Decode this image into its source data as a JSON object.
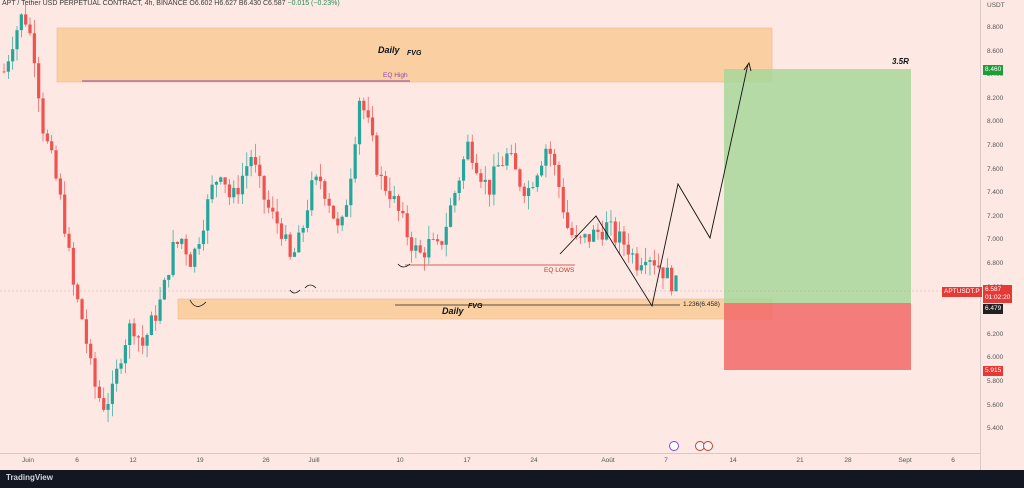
{
  "header": {
    "symbol": "APT / Tether USD PERPETUAL CONTRACT, 4h, BINANCE",
    "open": "O6.602",
    "high": "H6.627",
    "low": "B6.430",
    "close": "C6.587",
    "change": "−0.015 (−0.23%)"
  },
  "currency": "USDT",
  "chart_data": {
    "type": "candlestick",
    "symbol": "APTUSDT.P",
    "timeframe": "4h",
    "ylim": [
      5.2,
      9.0
    ],
    "x_ticks": [
      "Juin",
      "6",
      "12",
      "19",
      "26",
      "Juill",
      "10",
      "17",
      "24",
      "Août",
      "7",
      "14",
      "21",
      "28",
      "Sept",
      "6"
    ],
    "y_ticks": [
      "8.800",
      "8.600",
      "8.400",
      "8.200",
      "8.000",
      "7.800",
      "7.600",
      "7.400",
      "7.200",
      "7.000",
      "6.800",
      "6.600",
      "6.400",
      "6.200",
      "6.000",
      "5.800",
      "5.600",
      "5.400"
    ],
    "price_path": [
      8.4,
      8.7,
      8.9,
      8.6,
      7.9,
      7.6,
      7.2,
      6.6,
      6.3,
      5.8,
      5.6,
      5.7,
      6.1,
      6.3,
      6.1,
      6.3,
      6.5,
      6.9,
      7.0,
      6.8,
      7.1,
      7.4,
      7.6,
      7.3,
      7.5,
      7.7,
      7.4,
      7.2,
      7.1,
      6.8,
      7.0,
      7.4,
      7.5,
      7.3,
      7.0,
      7.5,
      8.2,
      7.9,
      7.5,
      7.4,
      7.2,
      7.0,
      6.85,
      6.95,
      6.9,
      7.2,
      7.5,
      7.8,
      7.6,
      7.4,
      7.6,
      7.7,
      7.5,
      7.4,
      7.6,
      7.8,
      7.5,
      7.1,
      6.95,
      7.0,
      7.05,
      7.1,
      7.0,
      6.95,
      6.8,
      6.9,
      6.8,
      6.7,
      6.6
    ],
    "candles": 156,
    "current_price": "6.587",
    "countdown": "01:02:20",
    "levels": {
      "take_profit": "8.460",
      "entry": "6.479",
      "stop": "5.915"
    }
  },
  "annotations": {
    "fvg_top_label": "Daily",
    "fvg_top_sup": "FVG",
    "eq_high": "EQ High",
    "eq_lows": "EQ LOWS",
    "fvg_bottom_label": "Daily",
    "fvg_bottom_sup": "FVG",
    "fib": "1.236(6.458)",
    "rr": "3.5R"
  },
  "footer": {
    "brand": "TradingView"
  },
  "colors": {
    "bull": "#26a69a",
    "bear": "#ef5350",
    "fvg": "#f9c98e",
    "profit": "#a8d79a",
    "loss": "#f26a6a"
  }
}
